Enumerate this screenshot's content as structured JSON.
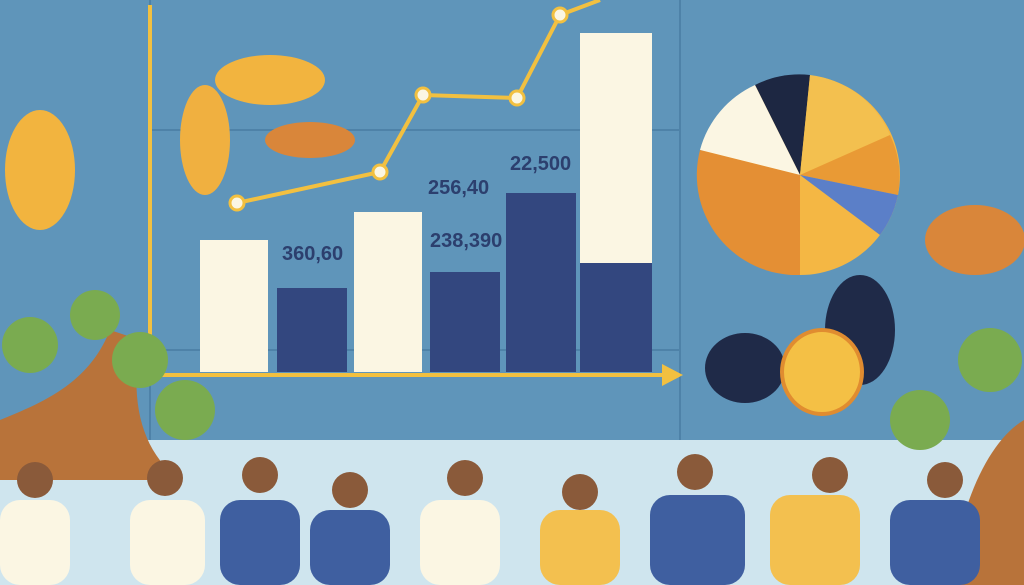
{
  "bar_labels": [
    "360,60",
    "256,40",
    "238,390",
    "22,500"
  ]
}
